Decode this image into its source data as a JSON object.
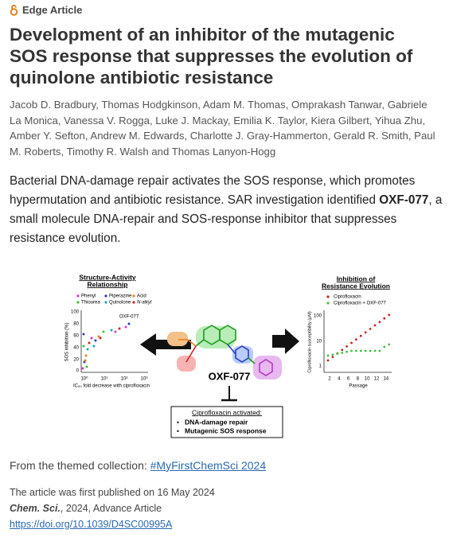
{
  "header": {
    "label": "Edge Article"
  },
  "title_lines": [
    "Development of an inhibitor of the mutagenic",
    "SOS response that suppresses the evolution of",
    "quinolone antibiotic resistance"
  ],
  "authors": "Jacob D. Bradbury, Thomas Hodgkinson, Adam M. Thomas, Omprakash Tanwar, Gabriele La Monica, Vanessa V. Rogga, Luke J. Mackay, Emilia K. Taylor, Kiera Gilbert, Yihua Zhu, Amber Y. Sefton, Andrew M. Edwards, Charlotte J. Gray-Hammerton, Gerald R. Smith, Paul M. Roberts, Timothy R. Walsh and Thomas Lanyon-Hogg",
  "abstract": {
    "before": "Bacterial DNA-damage repair activates the SOS response, which promotes hypermutation and antibiotic resistance. SAR investigation identified ",
    "highlight": "OXF-077",
    "after": ", a small molecule DNA-repair and SOS-response inhibitor that suppresses resistance evolution."
  },
  "graphical_abstract": {
    "left_panel": {
      "title_lines": [
        "Structure-Activity",
        "Relationship"
      ],
      "legend": [
        "Phenyl",
        "Piperazine",
        "Acid",
        "Thiourea",
        "Quinolone",
        "N-alkyl"
      ],
      "y_label": "SOS inhibition (%)",
      "y_ticks": [
        "100",
        "80",
        "60",
        "40",
        "20",
        "0"
      ],
      "x_ticks": [
        "10⁰",
        "10¹",
        "10²",
        "10³"
      ],
      "x_label": "IC₅₀ fold decrease with ciprofloxacin",
      "annotation": "OXF-077"
    },
    "compound": "OXF-077",
    "right_panel": {
      "title_lines": [
        "Inhibition of",
        "Resistance Evolution"
      ],
      "legend": [
        "Ciprofloxacin",
        "Ciprofloxacin + OXF-077"
      ],
      "y_label": "Ciprofloxacin susceptibility (μM)",
      "y_ticks": [
        "100",
        "10",
        "1"
      ],
      "x_ticks": [
        "2",
        "4",
        "6",
        "8",
        "10",
        "12",
        "14"
      ],
      "x_label": "Passage"
    },
    "box": {
      "heading": "Ciprofloxacin activated:",
      "items": [
        "DNA-damage repair",
        "Mutagenic SOS response"
      ]
    }
  },
  "collection": {
    "label": "From the themed collection:",
    "link": "#MyFirstChemSci 2024"
  },
  "published": "The article was first published on 16 May 2024",
  "citation": {
    "journal": "Chem. Sci.",
    "details": ", 2024, Advance Article"
  },
  "doi": "https://doi.org/10.1039/D4SC00995A"
}
